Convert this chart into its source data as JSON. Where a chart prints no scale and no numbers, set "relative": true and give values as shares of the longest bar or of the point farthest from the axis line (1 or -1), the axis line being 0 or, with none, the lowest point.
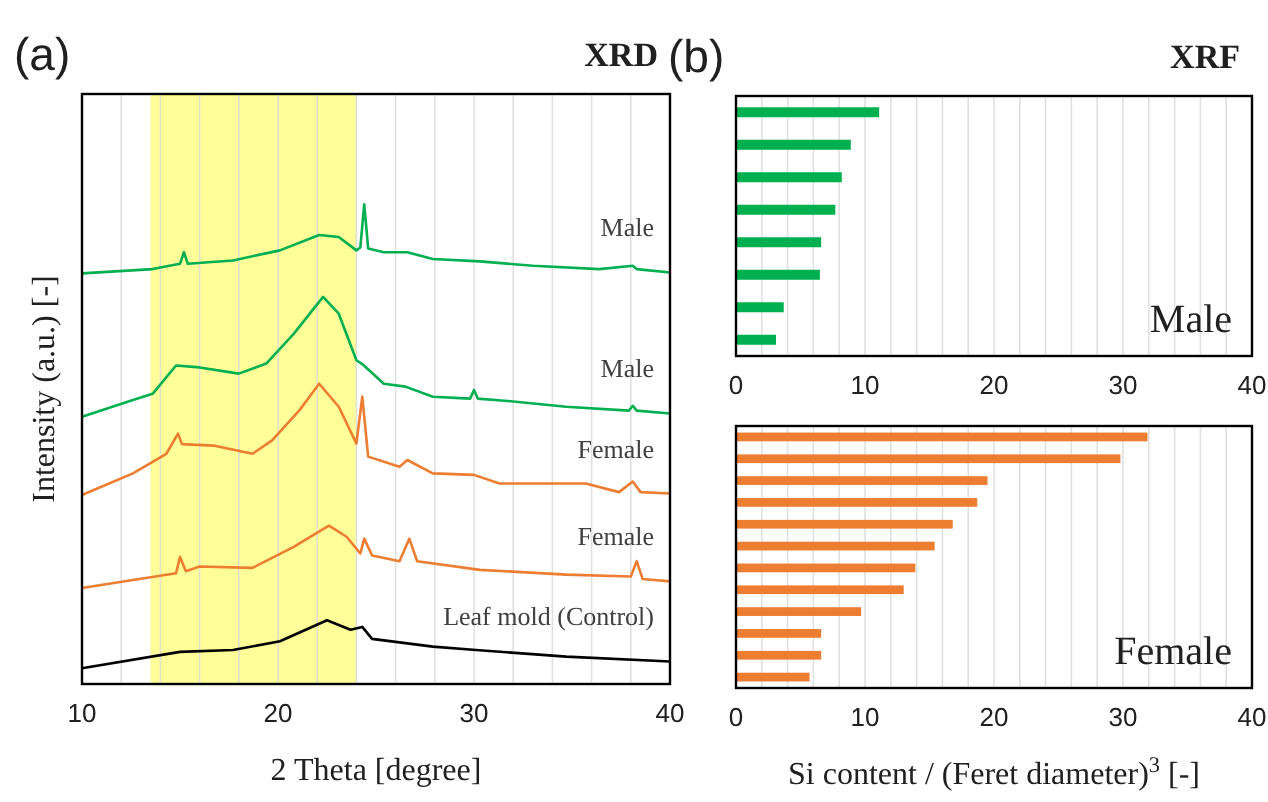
{
  "chart_data": [
    {
      "type": "line",
      "title": "XRD",
      "annotations": [
        "(a)"
      ],
      "xlabel": "2 Theta [degree]",
      "ylabel": "Intensity (a.u.) [-]",
      "relative": true,
      "xlim": [
        10,
        40
      ],
      "xticks": [
        10,
        {
          "value": 12,
          "label": null
        },
        {
          "value": 14,
          "label": null
        },
        {
          "value": 16,
          "label": null
        },
        {
          "value": 18,
          "label": null
        },
        20,
        {
          "value": 22,
          "label": null
        },
        {
          "value": 24,
          "label": null
        },
        {
          "value": 26,
          "label": null
        },
        {
          "value": 28,
          "label": null
        },
        30,
        {
          "value": 32,
          "label": null
        },
        {
          "value": 34,
          "label": null
        },
        {
          "value": 36,
          "label": null
        },
        {
          "value": 38,
          "label": null
        },
        40
      ],
      "tick_labels": "x",
      "grid": "x",
      "bands": [
        {
          "axis": "x",
          "from": 13.5,
          "to": 24,
          "color": "#ffff99"
        }
      ],
      "series": [
        {
          "name": "Male",
          "color": "#00b050",
          "x": [
            10,
            13.6,
            15,
            15.2,
            15.4,
            17.7,
            20.1,
            22.1,
            23.1,
            24,
            24.2,
            24.4,
            24.6,
            25.4,
            26.6,
            27.9,
            30.3,
            33,
            36.4,
            38.1,
            38.3,
            40
          ],
          "values": [
            0.856,
            0.865,
            0.876,
            0.9,
            0.876,
            0.883,
            0.904,
            0.936,
            0.932,
            0.904,
            0.91,
            1.0,
            0.908,
            0.9,
            0.9,
            0.886,
            0.881,
            0.872,
            0.865,
            0.872,
            0.865,
            0.858
          ]
        },
        {
          "name": "Male",
          "color": "#00b050",
          "x": [
            10,
            12.6,
            13.6,
            14.8,
            16,
            18,
            19.4,
            20.8,
            22.3,
            23.1,
            24,
            24.3,
            25.4,
            26.5,
            27.9,
            29.8,
            30,
            30.2,
            31.7,
            34.7,
            37.9,
            38.1,
            38.3,
            40
          ],
          "values": [
            0.557,
            0.592,
            0.605,
            0.664,
            0.66,
            0.647,
            0.668,
            0.73,
            0.807,
            0.772,
            0.675,
            0.667,
            0.626,
            0.62,
            0.599,
            0.595,
            0.613,
            0.595,
            0.59,
            0.578,
            0.57,
            0.58,
            0.57,
            0.564
          ]
        },
        {
          "name": "Female",
          "color": "#ed7d31",
          "x": [
            10,
            12.6,
            14.3,
            14.9,
            15.1,
            16.7,
            18.7,
            19.7,
            21.1,
            22.1,
            23.1,
            24,
            24.3,
            24.6,
            26.2,
            26.6,
            27.9,
            30,
            31.3,
            35.7,
            37.4,
            38.1,
            38.5,
            40
          ],
          "values": [
            0.394,
            0.439,
            0.48,
            0.522,
            0.5,
            0.497,
            0.48,
            0.508,
            0.571,
            0.626,
            0.578,
            0.501,
            0.599,
            0.474,
            0.453,
            0.467,
            0.439,
            0.436,
            0.418,
            0.418,
            0.4,
            0.422,
            0.4,
            0.397
          ]
        },
        {
          "name": "Female",
          "color": "#ed7d31",
          "x": [
            10,
            12.6,
            14.8,
            15,
            15.3,
            16,
            18.7,
            20.8,
            22.6,
            23.5,
            24.2,
            24.4,
            24.8,
            26.2,
            26.7,
            27.1,
            30.3,
            34.7,
            38,
            38.3,
            38.6,
            40
          ],
          "values": [
            0.2,
            0.217,
            0.231,
            0.265,
            0.235,
            0.245,
            0.242,
            0.286,
            0.33,
            0.307,
            0.272,
            0.303,
            0.268,
            0.256,
            0.303,
            0.256,
            0.238,
            0.228,
            0.224,
            0.256,
            0.219,
            0.214
          ]
        },
        {
          "name": "Leaf mold (Control)",
          "color": "#000000",
          "x": [
            10,
            15,
            17.7,
            20.1,
            22.5,
            23.7,
            24.3,
            24.8,
            27.9,
            30.1,
            34.7,
            40
          ],
          "values": [
            0.033,
            0.067,
            0.071,
            0.089,
            0.133,
            0.113,
            0.119,
            0.094,
            0.078,
            0.071,
            0.057,
            0.047
          ]
        }
      ]
    },
    {
      "type": "bar",
      "orientation": "horizontal",
      "title": "XRF",
      "annotations": [
        "(b)"
      ],
      "categories": [
        null,
        null,
        null,
        null,
        null,
        null,
        null,
        null
      ],
      "xlim": [
        0,
        40
      ],
      "xticks": [
        0,
        {
          "value": 2,
          "label": null
        },
        {
          "value": 4,
          "label": null
        },
        {
          "value": 6,
          "label": null
        },
        {
          "value": 8,
          "label": null
        },
        10,
        {
          "value": 12,
          "label": null
        },
        {
          "value": 14,
          "label": null
        },
        {
          "value": 16,
          "label": null
        },
        {
          "value": 18,
          "label": null
        },
        20,
        {
          "value": 22,
          "label": null
        },
        {
          "value": 24,
          "label": null
        },
        {
          "value": 26,
          "label": null
        },
        {
          "value": 28,
          "label": null
        },
        30,
        {
          "value": 32,
          "label": null
        },
        {
          "value": 34,
          "label": null
        },
        {
          "value": 36,
          "label": null
        },
        {
          "value": 38,
          "label": null
        },
        40
      ],
      "tick_labels": "x",
      "grid": "x",
      "series": [
        {
          "name": "Male",
          "color": "#00b050",
          "values": [
            11.1,
            8.9,
            8.2,
            7.7,
            6.6,
            6.5,
            3.7,
            3.1
          ]
        }
      ]
    },
    {
      "type": "bar",
      "orientation": "horizontal",
      "xlabel": "Si content / (Feret diameter)$^{3}$ [-]",
      "categories": [
        null,
        null,
        null,
        null,
        null,
        null,
        null,
        null,
        null,
        null,
        null,
        null
      ],
      "xlim": [
        0,
        40
      ],
      "xticks": [
        0,
        {
          "value": 2,
          "label": null
        },
        {
          "value": 4,
          "label": null
        },
        {
          "value": 6,
          "label": null
        },
        {
          "value": 8,
          "label": null
        },
        10,
        {
          "value": 12,
          "label": null
        },
        {
          "value": 14,
          "label": null
        },
        {
          "value": 16,
          "label": null
        },
        {
          "value": 18,
          "label": null
        },
        20,
        {
          "value": 22,
          "label": null
        },
        {
          "value": 24,
          "label": null
        },
        {
          "value": 26,
          "label": null
        },
        {
          "value": 28,
          "label": null
        },
        30,
        {
          "value": 32,
          "label": null
        },
        {
          "value": 34,
          "label": null
        },
        {
          "value": 36,
          "label": null
        },
        {
          "value": 38,
          "label": null
        },
        40
      ],
      "tick_labels": "x",
      "grid": "x",
      "series": [
        {
          "name": "Female",
          "color": "#ed7d31",
          "values": [
            31.9,
            29.8,
            19.5,
            18.7,
            16.8,
            15.4,
            13.9,
            13.0,
            9.7,
            6.6,
            6.6,
            5.7
          ]
        }
      ]
    }
  ]
}
